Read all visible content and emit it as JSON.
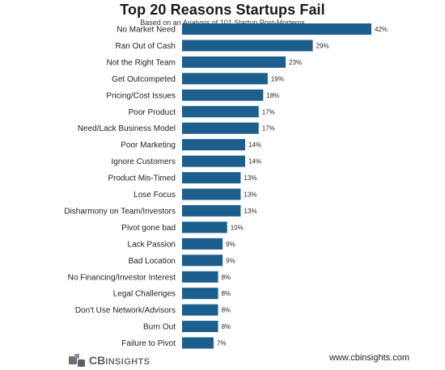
{
  "chart_data": {
    "type": "bar",
    "orientation": "horizontal",
    "title": "Top 20 Reasons Startups Fail",
    "subtitle": "Based on an Analysis of 101 Startup Post-Mortems",
    "categories": [
      "No Market Need",
      "Ran Out of Cash",
      "Not the Right Team",
      "Get Outcompeted",
      "Pricing/Cost Issues",
      "Poor Product",
      "Need/Lack Business Model",
      "Poor Marketing",
      "Ignore Customers",
      "Product Mis-Timed",
      "Lose Focus",
      "Disharmony on Team/Investors",
      "Pivot gone bad",
      "Lack Passion",
      "Bad Location",
      "No Financing/Investor Interest",
      "Legal Challenges",
      "Don't Use Network/Advisors",
      "Burn Out",
      "Failure to Pivot"
    ],
    "values": [
      42,
      29,
      23,
      19,
      18,
      17,
      17,
      14,
      14,
      13,
      13,
      13,
      10,
      9,
      9,
      8,
      8,
      8,
      8,
      7
    ],
    "value_labels": [
      "42%",
      "29%",
      "23%",
      "19%",
      "18%",
      "17%",
      "17%",
      "14%",
      "14%",
      "13%",
      "13%",
      "13%",
      "10%",
      "9%",
      "9%",
      "8%",
      "8%",
      "8%",
      "8%",
      "7%"
    ],
    "xlim": [
      0,
      42
    ],
    "grid": false,
    "bar_color": "#1c5f8f"
  },
  "footer": {
    "logo_mark_text": "CB",
    "logo_text": "INSIGHTS",
    "website": "www.cbinsights.com"
  },
  "colors": {
    "bar": "#1c5f8f",
    "logo": "#6a6f73"
  },
  "icons": {
    "logo": "cb-insights-logo-icon"
  }
}
